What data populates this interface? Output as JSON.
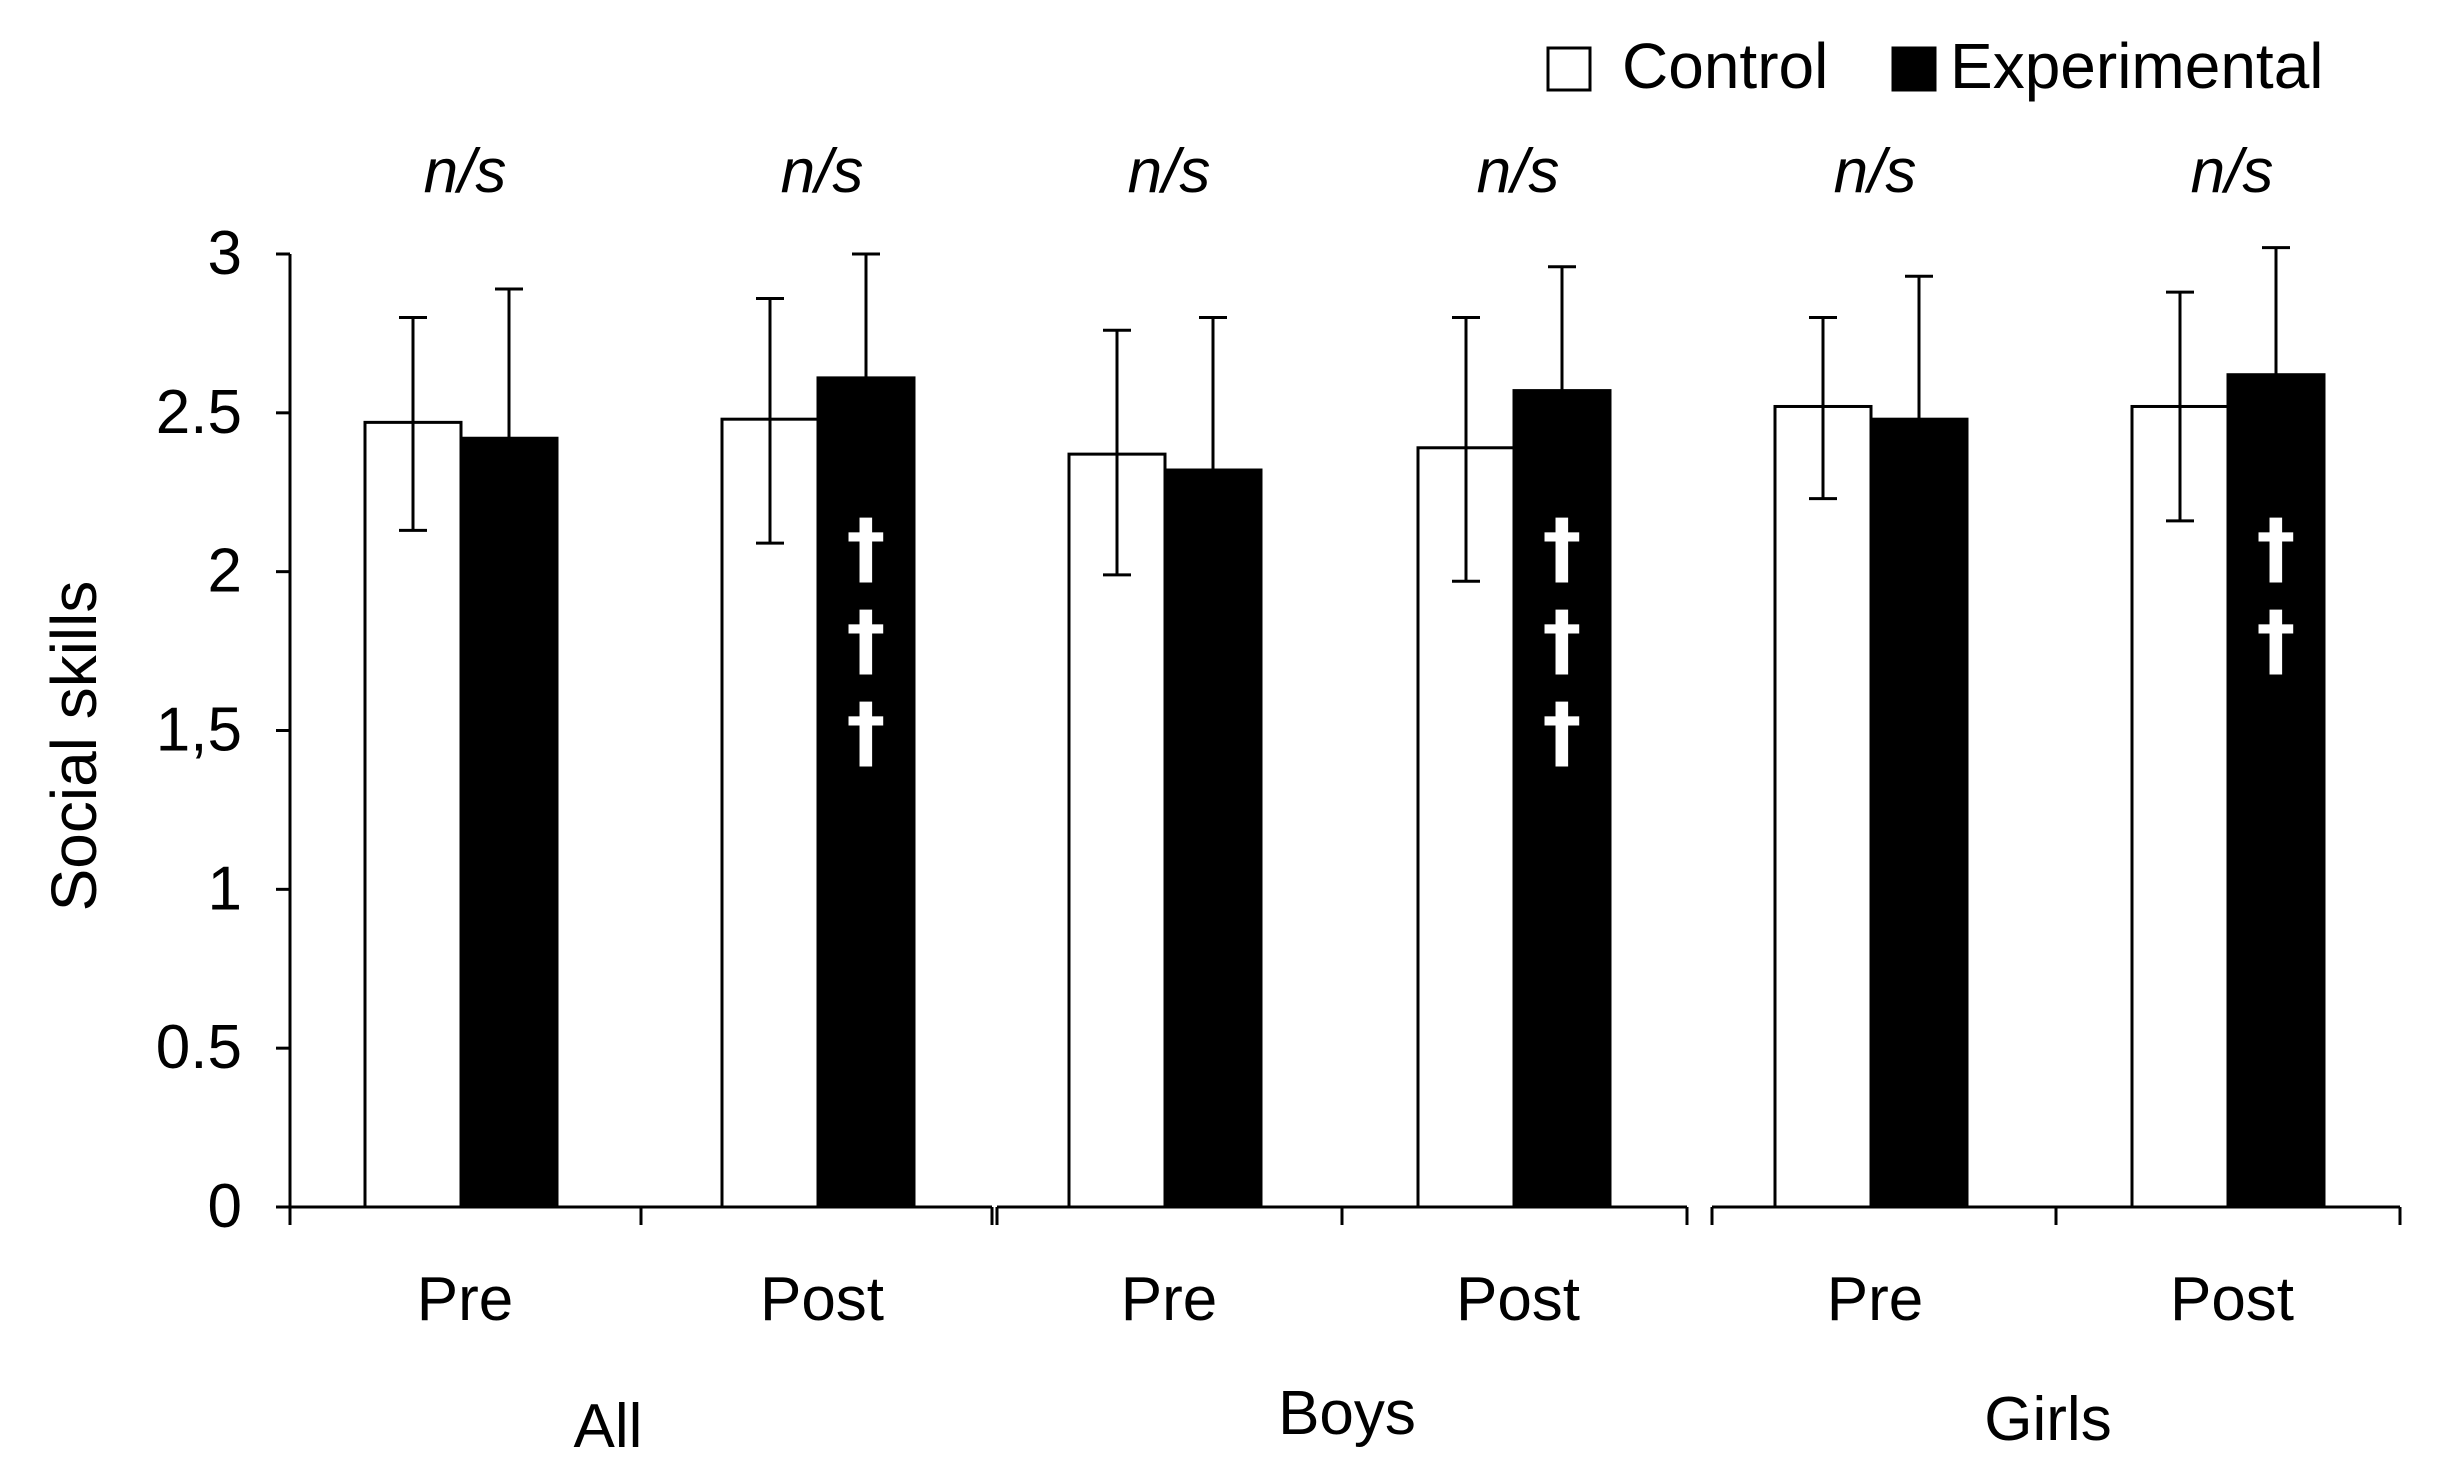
{
  "chart_data": {
    "type": "bar",
    "title": "",
    "xlabel": "",
    "ylabel": "Social skills",
    "ylim": [
      0,
      3
    ],
    "yticks": [
      "0",
      "0.5",
      "1",
      "1,5",
      "2",
      "2.5",
      "3"
    ],
    "groups": [
      {
        "label": "All",
        "timepoints": [
          {
            "label": "Pre",
            "annotation": "n/s",
            "control": {
              "value": 2.47,
              "err_low": 2.13,
              "err_high": 2.8
            },
            "experimental": {
              "value": 2.42,
              "err_low": 2.42,
              "err_high": 2.89
            },
            "daggers": []
          },
          {
            "label": "Post",
            "annotation": "n/s",
            "control": {
              "value": 2.48,
              "err_low": 2.09,
              "err_high": 2.86
            },
            "experimental": {
              "value": 2.61,
              "err_low": 2.61,
              "err_high": 3.0
            },
            "daggers": [
              "†",
              "†",
              "†"
            ]
          }
        ]
      },
      {
        "label": "Boys",
        "timepoints": [
          {
            "label": "Pre",
            "annotation": "n/s",
            "control": {
              "value": 2.37,
              "err_low": 1.99,
              "err_high": 2.76
            },
            "experimental": {
              "value": 2.32,
              "err_low": 2.32,
              "err_high": 2.8
            },
            "daggers": []
          },
          {
            "label": "Post",
            "annotation": "n/s",
            "control": {
              "value": 2.39,
              "err_low": 1.97,
              "err_high": 2.8
            },
            "experimental": {
              "value": 2.57,
              "err_low": 2.57,
              "err_high": 2.96
            },
            "daggers": [
              "†",
              "†",
              "†"
            ]
          }
        ]
      },
      {
        "label": "Girls",
        "timepoints": [
          {
            "label": "Pre",
            "annotation": "n/s",
            "control": {
              "value": 2.52,
              "err_low": 2.23,
              "err_high": 2.8
            },
            "experimental": {
              "value": 2.48,
              "err_low": 2.48,
              "err_high": 2.93
            },
            "daggers": []
          },
          {
            "label": "Post",
            "annotation": "n/s",
            "control": {
              "value": 2.52,
              "err_low": 2.16,
              "err_high": 2.88
            },
            "experimental": {
              "value": 2.62,
              "err_low": 2.62,
              "err_high": 3.02
            },
            "daggers": [
              "†",
              "†"
            ]
          }
        ]
      }
    ],
    "series": [
      {
        "name": "Control",
        "color": "#ffffff"
      },
      {
        "name": "Experimental",
        "color": "#000000"
      }
    ],
    "legend_position": "top-right"
  }
}
